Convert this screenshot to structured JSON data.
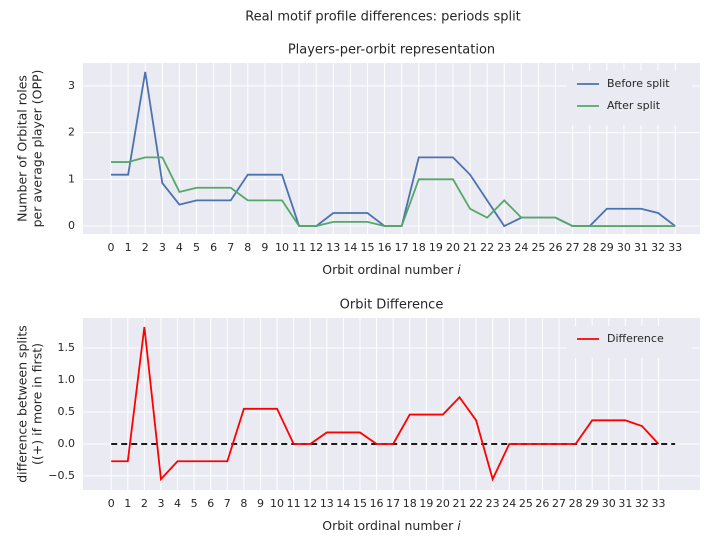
{
  "title": "Real motif profile differences: periods split",
  "chart_data": [
    {
      "type": "line",
      "title": "Players-per-orbit representation",
      "xlabel": "Orbit ordinal number",
      "xlabel_var": "i",
      "ylabel": [
        "Number of Orbital roles",
        "per average player (OPP)"
      ],
      "x": [
        0,
        1,
        2,
        3,
        4,
        5,
        6,
        7,
        8,
        9,
        10,
        11,
        12,
        13,
        14,
        15,
        16,
        17,
        18,
        19,
        20,
        21,
        22,
        23,
        24,
        25,
        26,
        27,
        28,
        29,
        30,
        31,
        32,
        33
      ],
      "series": [
        {
          "name": "Before split",
          "color": "#4c72b0",
          "values": [
            1.1,
            1.1,
            3.3,
            0.92,
            0.46,
            0.55,
            0.55,
            0.55,
            1.1,
            1.1,
            1.1,
            0,
            0,
            0.28,
            0.28,
            0.28,
            0,
            0,
            1.47,
            1.47,
            1.47,
            1.1,
            0.55,
            0,
            0.18,
            0.18,
            0.18,
            0,
            0,
            0.37,
            0.37,
            0.37,
            0.28,
            0
          ]
        },
        {
          "name": "After split",
          "color": "#55a868",
          "values": [
            1.37,
            1.37,
            1.47,
            1.47,
            0.73,
            0.82,
            0.82,
            0.82,
            0.55,
            0.55,
            0.55,
            0,
            0,
            0.09,
            0.09,
            0.09,
            0,
            0,
            1.0,
            1.0,
            1.0,
            0.37,
            0.18,
            0.55,
            0.18,
            0.18,
            0.18,
            0,
            0,
            0,
            0,
            0,
            0,
            0
          ]
        }
      ],
      "xlim": [
        -1.64,
        34.45
      ],
      "xticks": [
        0,
        1,
        2,
        3,
        4,
        5,
        6,
        7,
        8,
        9,
        10,
        11,
        12,
        13,
        14,
        15,
        16,
        17,
        18,
        19,
        20,
        21,
        22,
        23,
        24,
        25,
        26,
        27,
        28,
        29,
        30,
        31,
        32,
        33
      ],
      "ylim": [
        -0.17,
        3.49
      ],
      "yticks": [
        0,
        1,
        2,
        3
      ],
      "grid": true,
      "legend": "upper-right"
    },
    {
      "type": "line",
      "title": "Orbit Difference",
      "xlabel": "Orbit ordinal number",
      "xlabel_var": "i",
      "ylabel": [
        "difference between splits",
        "((+) if more in first)"
      ],
      "x": [
        0,
        1,
        2,
        3,
        4,
        5,
        6,
        7,
        8,
        9,
        10,
        11,
        12,
        13,
        14,
        15,
        16,
        17,
        18,
        19,
        20,
        21,
        22,
        23,
        24,
        25,
        26,
        27,
        28,
        29,
        30,
        31,
        32,
        33
      ],
      "series": [
        {
          "name": "Difference",
          "color": "#ff0000",
          "values": [
            -0.27,
            -0.27,
            1.83,
            -0.55,
            -0.27,
            -0.27,
            -0.27,
            -0.27,
            0.55,
            0.55,
            0.55,
            0,
            0,
            0.18,
            0.18,
            0.18,
            0,
            0,
            0.46,
            0.46,
            0.46,
            0.73,
            0.37,
            -0.55,
            0,
            0,
            0,
            0,
            0,
            0.37,
            0.37,
            0.37,
            0.28,
            0
          ]
        }
      ],
      "hline": {
        "value": 0,
        "xmin": 0,
        "xmax": 34,
        "color": "#000000"
      },
      "xlim": [
        -1.7,
        35.5
      ],
      "xticks": [
        0,
        1,
        2,
        3,
        4,
        5,
        6,
        7,
        8,
        9,
        10,
        11,
        12,
        13,
        14,
        15,
        16,
        17,
        18,
        19,
        20,
        21,
        22,
        23,
        24,
        25,
        26,
        27,
        28,
        29,
        30,
        31,
        32,
        33
      ],
      "ylim": [
        -0.72,
        1.97
      ],
      "yticks": [
        {
          "value": -0.5,
          "label": "−0.5"
        },
        {
          "value": 0,
          "label": "0.0"
        },
        0.5,
        {
          "value": 1,
          "label": "1.0"
        },
        1.5
      ],
      "grid": true,
      "legend": "upper-right"
    }
  ]
}
